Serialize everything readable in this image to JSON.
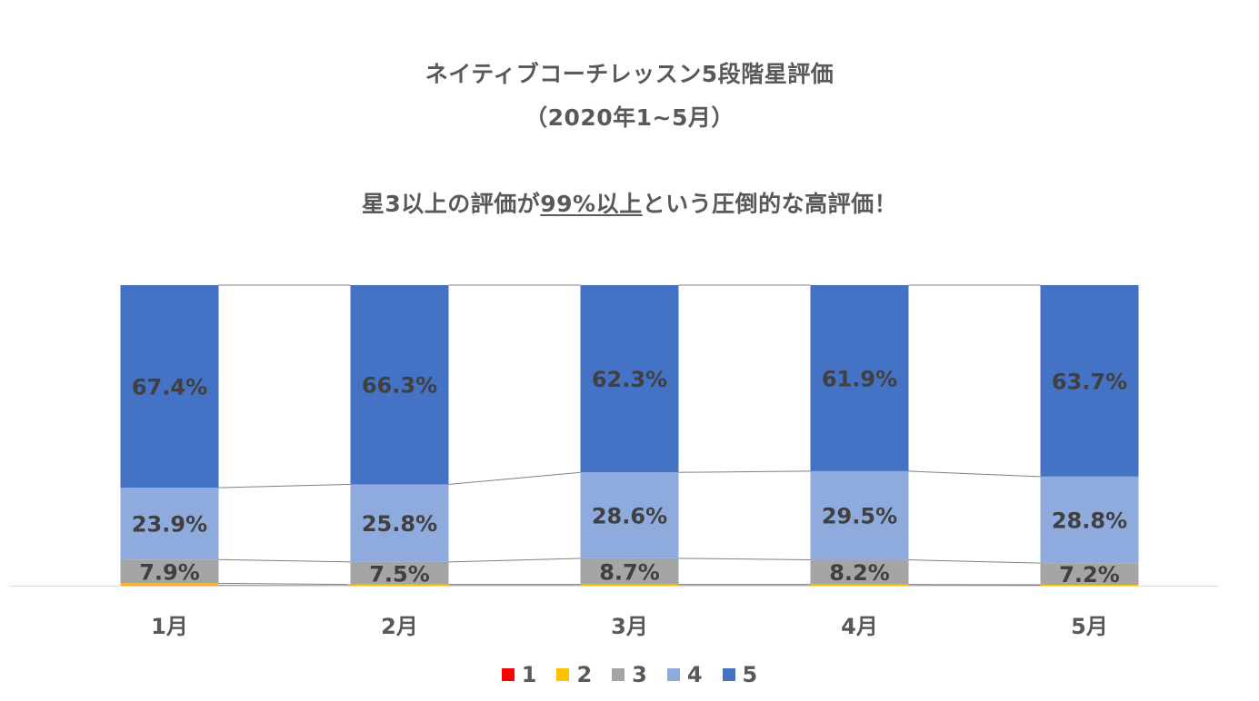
{
  "title_line1": "ネイティブコーチレッスン5段階星評価",
  "title_line2": "（2020年1~5月）",
  "subtitle": {
    "before": "星3以上の評価が",
    "underlined": "99%以上",
    "after": "という圧倒的な高評価！"
  },
  "chart_data": {
    "type": "bar",
    "stacked": true,
    "categories": [
      "1月",
      "2月",
      "3月",
      "4月",
      "5月"
    ],
    "series": [
      {
        "name": "1",
        "color": "#FF0000",
        "values": [
          0.1,
          0.0,
          0.0,
          0.0,
          0.0
        ]
      },
      {
        "name": "2",
        "color": "#FFC000",
        "values": [
          0.7,
          0.4,
          0.4,
          0.4,
          0.3
        ]
      },
      {
        "name": "3",
        "color": "#A5A5A5",
        "values": [
          7.9,
          7.5,
          8.7,
          8.2,
          7.2
        ],
        "labels": [
          "7.9%",
          "7.5%",
          "8.7%",
          "8.2%",
          "7.2%"
        ]
      },
      {
        "name": "4",
        "color": "#8FAADC",
        "values": [
          23.9,
          25.8,
          28.6,
          29.5,
          28.8
        ],
        "labels": [
          "23.9%",
          "25.8%",
          "28.6%",
          "29.5%",
          "28.8%"
        ]
      },
      {
        "name": "5",
        "color": "#4472C4",
        "values": [
          67.4,
          66.3,
          62.3,
          61.9,
          63.7
        ],
        "labels": [
          "67.4%",
          "66.3%",
          "62.3%",
          "61.9%",
          "63.7%"
        ]
      }
    ],
    "ylim": [
      0,
      100
    ],
    "series_lines": true,
    "legend_position": "bottom",
    "grid": false
  }
}
